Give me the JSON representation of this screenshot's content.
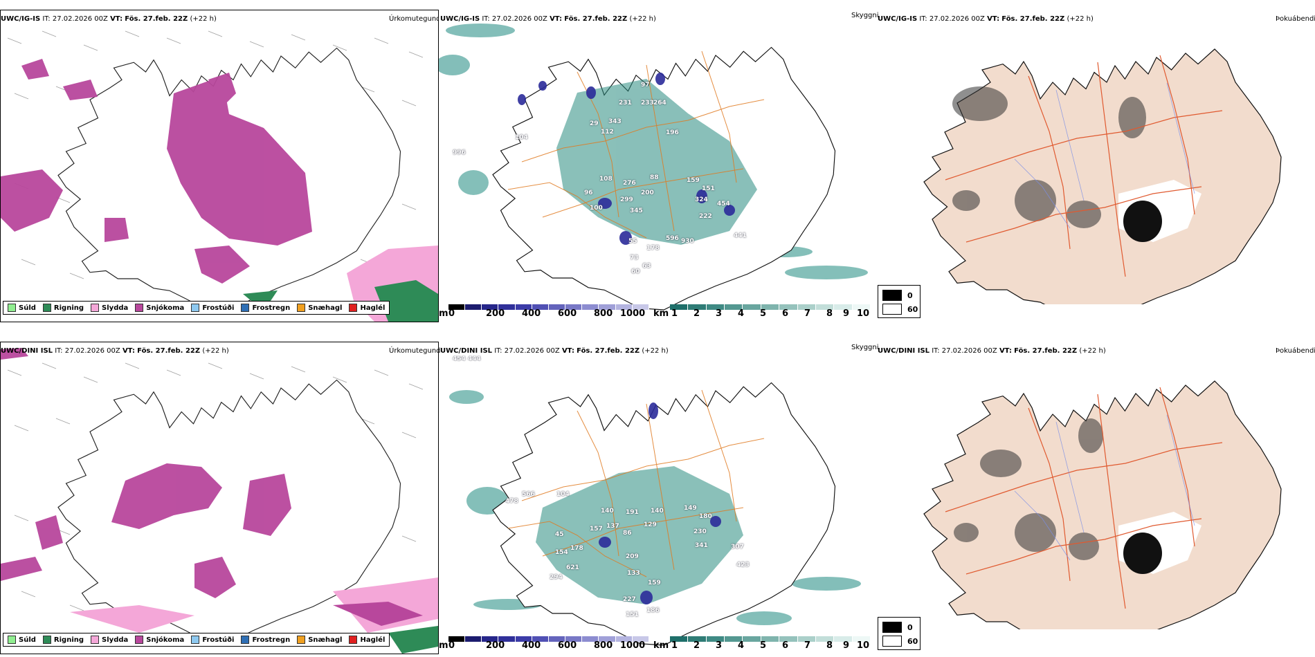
{
  "rows": [
    {
      "model": "UWC/IG-IS",
      "it_label": "IT:",
      "it_value": "27.02.2026 00Z",
      "vt_label": "VT:",
      "vt_value": "Fös. 27.feb. 22Z",
      "lead": "(+22 h)",
      "numbers": [
        "996",
        "104",
        "231",
        "233",
        "264",
        "343",
        "29",
        "97",
        "112",
        "196",
        "108",
        "276",
        "88",
        "96",
        "200",
        "299",
        "159",
        "151",
        "100",
        "345",
        "324",
        "454",
        "222",
        "55",
        "441",
        "178",
        "596",
        "930",
        "73",
        "63",
        "60"
      ]
    },
    {
      "model": "UWC/DINI ISL",
      "it_label": "IT:",
      "it_value": "27.02.2026 00Z",
      "vt_label": "VT:",
      "vt_value": "Fös. 27.feb. 22Z",
      "lead": "(+22 h)",
      "numbers": [
        "478",
        "566",
        "104",
        "140",
        "191",
        "140",
        "180",
        "230",
        "157",
        "137",
        "86",
        "129",
        "149",
        "341",
        "307",
        "45",
        "154",
        "178",
        "209",
        "423",
        "621",
        "294",
        "133",
        "159",
        "227",
        "186",
        "151",
        "454",
        "444"
      ]
    }
  ],
  "panel_titles": {
    "precip_type": "Úrkomutegund",
    "visibility": "Skyggni",
    "fog": "Þokuábendi"
  },
  "legend": [
    {
      "label": "Súld",
      "color": "#90ee90"
    },
    {
      "label": "Rigning",
      "color": "#2e8b57"
    },
    {
      "label": "Slydda",
      "color": "#f4a7d8"
    },
    {
      "label": "Snjókoma",
      "color": "#b8479c"
    },
    {
      "label": "Frostúði",
      "color": "#8ec9f0"
    },
    {
      "label": "Frostregn",
      "color": "#2f6fb5"
    },
    {
      "label": "Snæhagl",
      "color": "#f0a020"
    },
    {
      "label": "Haglél",
      "color": "#e02020"
    }
  ],
  "height_colorbar": {
    "unit": "m",
    "ticks": [
      "0",
      "200",
      "400",
      "600",
      "800",
      "1000"
    ],
    "colors": [
      "#000000",
      "#1c1c6e",
      "#26268a",
      "#30309a",
      "#3c3ca8",
      "#5050b4",
      "#6464bc",
      "#7878c6",
      "#8c8cd0",
      "#a0a0d8",
      "#b4b4e0",
      "#c8c8e8"
    ]
  },
  "vis_colorbar": {
    "unit": "km",
    "ticks": [
      "1",
      "2",
      "3",
      "4",
      "5",
      "6",
      "7",
      "8",
      "9",
      "10"
    ],
    "colors": [
      "#1f6f6a",
      "#2f7c76",
      "#3f8a84",
      "#549891",
      "#69a69f",
      "#7fb4ad",
      "#95c2bc",
      "#abd0ca",
      "#c2ded9",
      "#d8ece9",
      "#eef8f6"
    ]
  },
  "fog_legend": {
    "top_value": "0",
    "bottom_value": "60"
  }
}
